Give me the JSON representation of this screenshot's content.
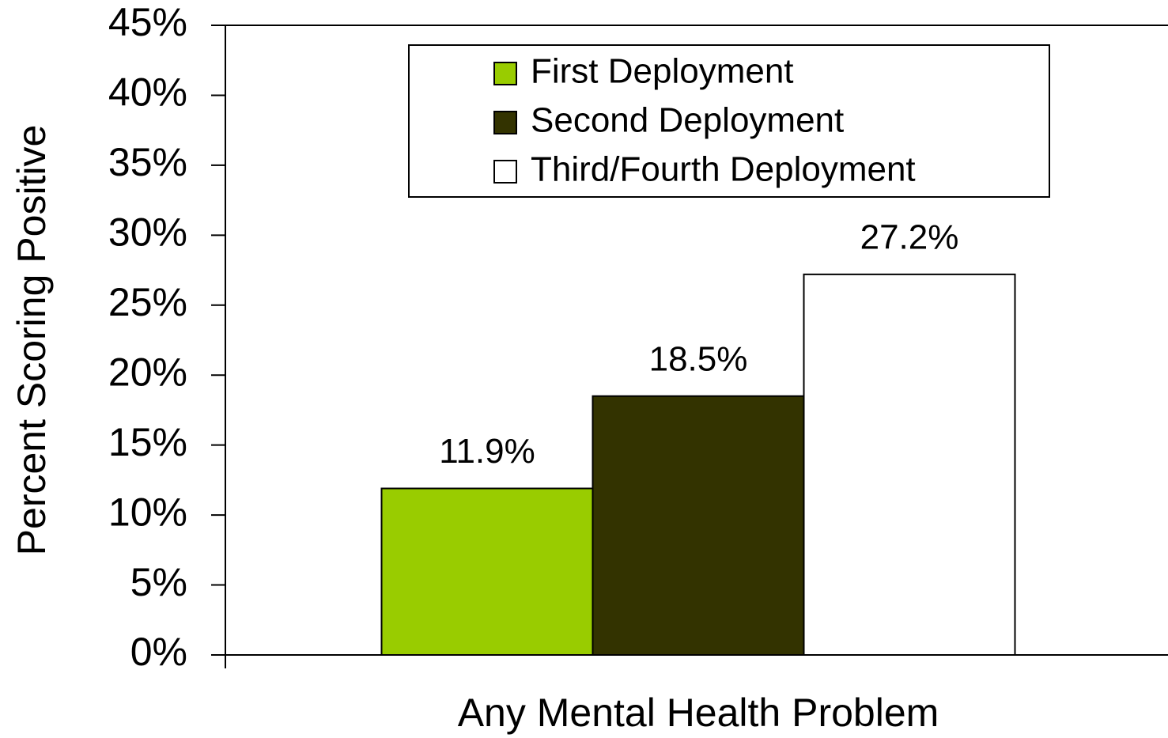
{
  "chart_data": {
    "type": "bar",
    "ylabel": "Percent Scoring Positive",
    "categories": [
      "Any Mental Health Problem"
    ],
    "series": [
      {
        "name": "First Deployment",
        "color": "#99cc00",
        "values": [
          11.9
        ],
        "value_labels": [
          "11.9%"
        ]
      },
      {
        "name": "Second Deployment",
        "color": "#333300",
        "values": [
          18.5
        ],
        "value_labels": [
          "18.5%"
        ]
      },
      {
        "name": "Third/Fourth Deployment",
        "color": "#ffffff",
        "values": [
          27.2
        ],
        "value_labels": [
          "27.2%"
        ]
      }
    ],
    "ylim": [
      0,
      45
    ],
    "yticks": [
      {
        "value": 0,
        "label": "0%"
      },
      {
        "value": 5,
        "label": "5%"
      },
      {
        "value": 10,
        "label": "10%"
      },
      {
        "value": 15,
        "label": "15%"
      },
      {
        "value": 20,
        "label": "20%"
      },
      {
        "value": 25,
        "label": "25%"
      },
      {
        "value": 30,
        "label": "30%"
      },
      {
        "value": 35,
        "label": "35%"
      },
      {
        "value": 40,
        "label": "40%"
      },
      {
        "value": 45,
        "label": "45%"
      }
    ],
    "grid": false,
    "legend": "top"
  }
}
